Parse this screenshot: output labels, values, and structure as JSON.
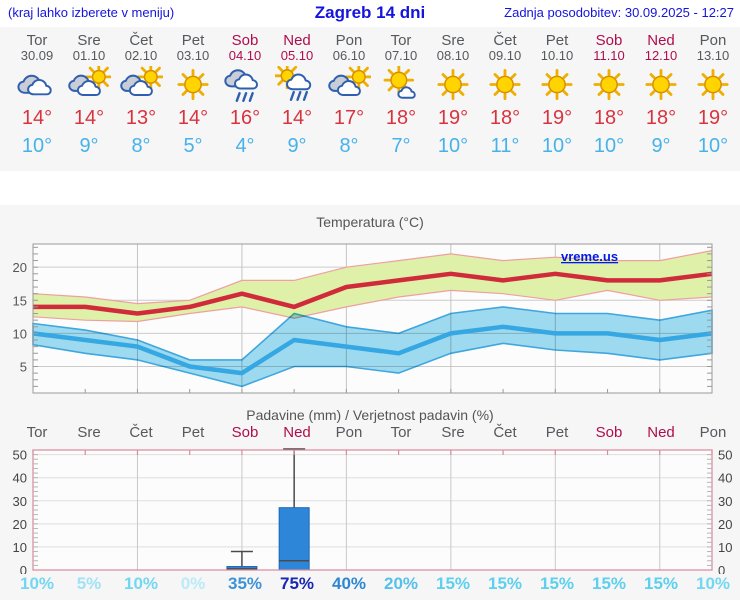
{
  "header": {
    "hint": "(kraj lahko izberete v meniju)",
    "title": "Zagreb 14 dni",
    "updated": "Zadnja posodobitev: 30.09.2025 - 12:27"
  },
  "watermark": "vreme.us",
  "colors": {
    "header_blue": "#1414dd",
    "weekday_grey": "#55585c",
    "weekend_red": "#b00d4d",
    "tmax_red": "#d9333f",
    "tmin_blue": "#45b2ea",
    "temp_line_max": "#d02b3a",
    "temp_line_min": "#35a7e2",
    "temp_band_max_fill": "#dff0a8",
    "temp_band_max_edge": "#ef9f9f",
    "temp_band_min_fill": "#9fdcf2",
    "bar_blue": "#2e86d8",
    "precip_frame_pink": "#d98a9e",
    "whisker_grey": "#4a4a4a"
  },
  "days": [
    {
      "name": "Tor",
      "date": "30.09",
      "weekend": false,
      "icon": "cloudy",
      "tmax": "14°",
      "tmin": "10°"
    },
    {
      "name": "Sre",
      "date": "01.10",
      "weekend": false,
      "icon": "partly",
      "tmax": "14°",
      "tmin": "9°"
    },
    {
      "name": "Čet",
      "date": "02.10",
      "weekend": false,
      "icon": "partly",
      "tmax": "13°",
      "tmin": "8°"
    },
    {
      "name": "Pet",
      "date": "03.10",
      "weekend": false,
      "icon": "sunny",
      "tmax": "14°",
      "tmin": "5°"
    },
    {
      "name": "Sob",
      "date": "04.10",
      "weekend": true,
      "icon": "rain",
      "tmax": "16°",
      "tmin": "4°"
    },
    {
      "name": "Ned",
      "date": "05.10",
      "weekend": true,
      "icon": "sun-rain",
      "tmax": "14°",
      "tmin": "9°"
    },
    {
      "name": "Pon",
      "date": "06.10",
      "weekend": false,
      "icon": "partly",
      "tmax": "17°",
      "tmin": "8°"
    },
    {
      "name": "Tor",
      "date": "07.10",
      "weekend": false,
      "icon": "mostly-sunny",
      "tmax": "18°",
      "tmin": "7°"
    },
    {
      "name": "Sre",
      "date": "08.10",
      "weekend": false,
      "icon": "sunny",
      "tmax": "19°",
      "tmin": "10°"
    },
    {
      "name": "Čet",
      "date": "09.10",
      "weekend": false,
      "icon": "sunny",
      "tmax": "18°",
      "tmin": "11°"
    },
    {
      "name": "Pet",
      "date": "10.10",
      "weekend": false,
      "icon": "sunny",
      "tmax": "19°",
      "tmin": "10°"
    },
    {
      "name": "Sob",
      "date": "11.10",
      "weekend": true,
      "icon": "sunny",
      "tmax": "18°",
      "tmin": "10°"
    },
    {
      "name": "Ned",
      "date": "12.10",
      "weekend": true,
      "icon": "sunny",
      "tmax": "18°",
      "tmin": "9°"
    },
    {
      "name": "Pon",
      "date": "13.10",
      "weekend": false,
      "icon": "sunny",
      "tmax": "19°",
      "tmin": "10°"
    }
  ],
  "chart_data": [
    {
      "type": "area",
      "title": "Temperatura (°C)",
      "categories": [
        "Tor",
        "Sre",
        "Čet",
        "Pet",
        "Sob",
        "Ned",
        "Pon",
        "Tor",
        "Sre",
        "Čet",
        "Pet",
        "Sob",
        "Ned",
        "Pon"
      ],
      "series": [
        {
          "name": "max_temp",
          "values": [
            14,
            14,
            13,
            14,
            16,
            14,
            17,
            18,
            19,
            18,
            19,
            18,
            18,
            19
          ]
        },
        {
          "name": "max_temp_upper",
          "values": [
            16,
            15.5,
            14.5,
            15,
            18,
            18,
            20,
            21,
            22,
            21,
            21.5,
            21,
            21,
            22.5
          ]
        },
        {
          "name": "max_temp_lower",
          "values": [
            12.5,
            12,
            11.8,
            13,
            14,
            12.3,
            14,
            15.5,
            16.5,
            16,
            15,
            16.5,
            15,
            15.5
          ]
        },
        {
          "name": "min_temp",
          "values": [
            10,
            9,
            8,
            5,
            4,
            9,
            8,
            7,
            10,
            11,
            10,
            10,
            9,
            10
          ]
        },
        {
          "name": "min_temp_upper",
          "values": [
            11.5,
            10.5,
            9,
            6,
            6,
            13,
            11,
            10,
            13,
            14,
            13,
            13,
            12,
            13.5
          ]
        },
        {
          "name": "min_temp_lower",
          "values": [
            8.3,
            7,
            6,
            4,
            2,
            5,
            5,
            4,
            7,
            8.5,
            7.5,
            7,
            6,
            7
          ]
        }
      ],
      "ylim": [
        1,
        23.5
      ],
      "yticks": [
        5,
        10,
        15,
        20
      ],
      "grid": true,
      "legend": "none"
    },
    {
      "type": "bar",
      "title": "Padavine (mm) / Verjetnost padavin (%)",
      "categories": [
        "Tor",
        "Sre",
        "Čet",
        "Pet",
        "Sob",
        "Ned",
        "Pon",
        "Tor",
        "Sre",
        "Čet",
        "Pet",
        "Sob",
        "Ned",
        "Pon"
      ],
      "values": [
        0,
        0,
        0,
        0,
        1.5,
        27,
        0,
        0,
        0,
        0,
        0,
        0,
        0,
        0
      ],
      "whisker_low": [
        null,
        null,
        null,
        null,
        0.5,
        4,
        null,
        null,
        null,
        null,
        null,
        null,
        null,
        null
      ],
      "whisker_high": [
        null,
        null,
        null,
        null,
        8,
        52.5,
        null,
        null,
        null,
        null,
        null,
        null,
        null,
        null
      ],
      "probabilities": [
        {
          "label": "10%",
          "color": "#74d7f1"
        },
        {
          "label": "5%",
          "color": "#9fe3f6"
        },
        {
          "label": "10%",
          "color": "#74d7f1"
        },
        {
          "label": "0%",
          "color": "#b9ebf8"
        },
        {
          "label": "35%",
          "color": "#3d92d8"
        },
        {
          "label": "75%",
          "color": "#1b27b0"
        },
        {
          "label": "40%",
          "color": "#2f86d3"
        },
        {
          "label": "20%",
          "color": "#55c0e9"
        },
        {
          "label": "15%",
          "color": "#5ecfee"
        },
        {
          "label": "15%",
          "color": "#5ecfee"
        },
        {
          "label": "15%",
          "color": "#5ecfee"
        },
        {
          "label": "15%",
          "color": "#5ecfee"
        },
        {
          "label": "15%",
          "color": "#5ecfee"
        },
        {
          "label": "10%",
          "color": "#74d7f1"
        }
      ],
      "ylim": [
        0,
        52
      ],
      "yticks": [
        0,
        10,
        20,
        30,
        40,
        50
      ],
      "grid": true,
      "legend": "none"
    }
  ]
}
